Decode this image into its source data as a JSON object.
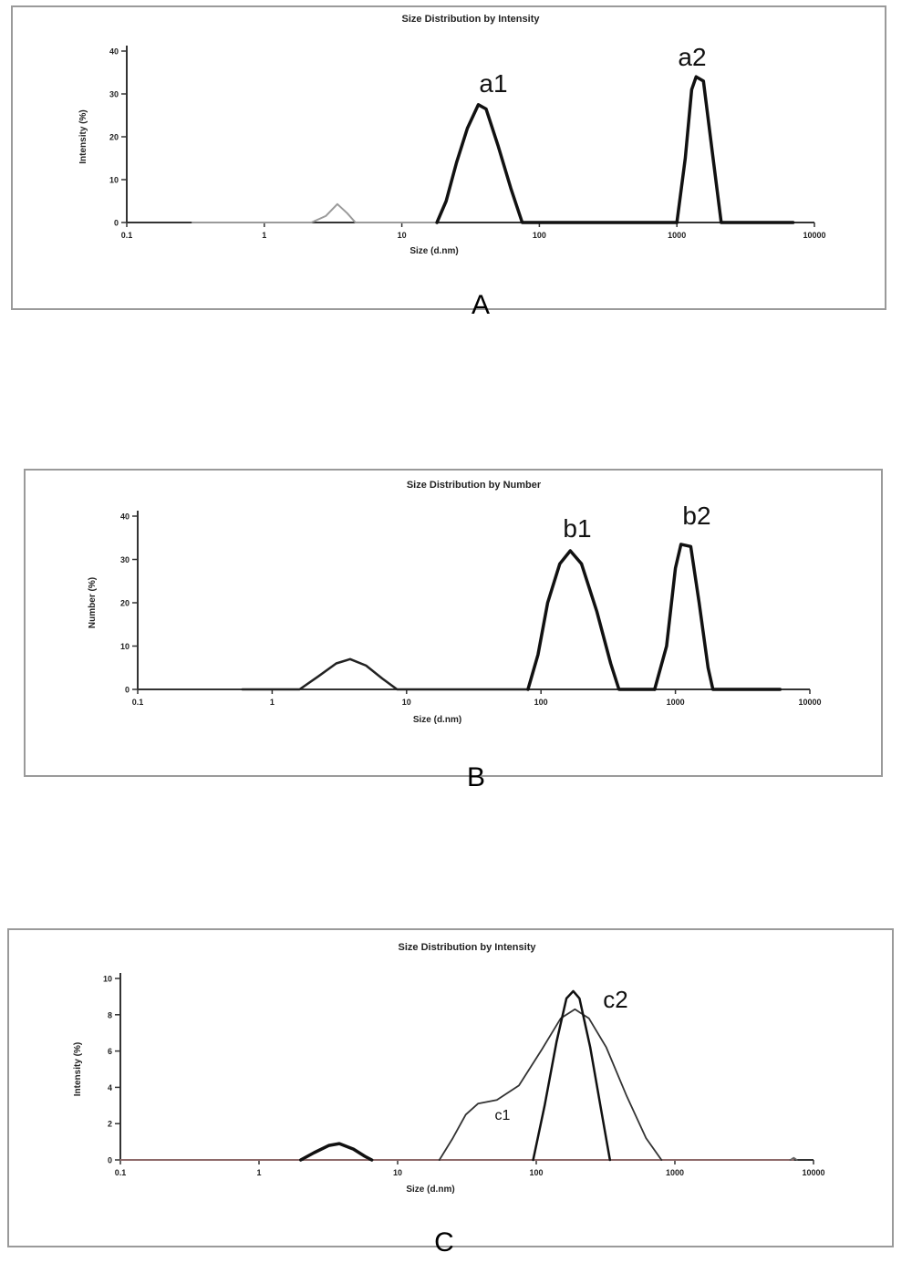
{
  "chart_data": [
    {
      "type": "line",
      "panel_label": "A",
      "title": "Size Distribution by Intensity",
      "xlabel": "Size (d.nm)",
      "ylabel": "Intensity (%)",
      "x_scale": "log",
      "xlim": [
        0.1,
        10000
      ],
      "x_ticks": [
        "0.1",
        "1",
        "10",
        "100",
        "1000",
        "10000"
      ],
      "ylim": [
        0,
        40
      ],
      "y_ticks": [
        "0",
        "10",
        "20",
        "30",
        "40"
      ],
      "grid": false,
      "peak_labels": [
        "a1",
        "a2"
      ],
      "series": [
        {
          "label": "",
          "color": "#9a9a9a",
          "width": 2,
          "points": [
            [
              0.3,
              0
            ],
            [
              2.2,
              0
            ],
            [
              2.8,
              1.5
            ],
            [
              3.4,
              4.3
            ],
            [
              4.0,
              2.2
            ],
            [
              4.6,
              0
            ],
            [
              18,
              0
            ]
          ]
        },
        {
          "label": "a1",
          "color": "#111111",
          "width": 3.5,
          "points": [
            [
              18,
              0
            ],
            [
              21,
              5
            ],
            [
              25,
              14
            ],
            [
              30,
              22
            ],
            [
              36,
              27.5
            ],
            [
              41,
              26.5
            ],
            [
              50,
              18
            ],
            [
              62,
              8
            ],
            [
              75,
              0
            ],
            [
              1000,
              0
            ]
          ]
        },
        {
          "label": "a2",
          "color": "#111111",
          "width": 3.5,
          "points": [
            [
              1000,
              0
            ],
            [
              1150,
              15
            ],
            [
              1280,
              31
            ],
            [
              1380,
              34
            ],
            [
              1560,
              33
            ],
            [
              1800,
              17
            ],
            [
              2100,
              0
            ],
            [
              7000,
              0
            ]
          ]
        }
      ]
    },
    {
      "type": "line",
      "panel_label": "B",
      "title": "Size Distribution by Number",
      "xlabel": "Size (d.nm)",
      "ylabel": "Number (%)",
      "x_scale": "log",
      "xlim": [
        0.1,
        10000
      ],
      "x_ticks": [
        "0.1",
        "1",
        "10",
        "100",
        "1000",
        "10000"
      ],
      "ylim": [
        0,
        40
      ],
      "y_ticks": [
        "0",
        "10",
        "20",
        "30",
        "40"
      ],
      "grid": false,
      "peak_labels": [
        "b1",
        "b2"
      ],
      "series": [
        {
          "label": "",
          "color": "#222222",
          "width": 2.5,
          "points": [
            [
              0.6,
              0
            ],
            [
              1.6,
              0
            ],
            [
              2.2,
              3
            ],
            [
              3.0,
              6
            ],
            [
              3.8,
              7
            ],
            [
              5.0,
              5.5
            ],
            [
              6.6,
              2.5
            ],
            [
              8.5,
              0
            ],
            [
              80,
              0
            ]
          ]
        },
        {
          "label": "b1",
          "color": "#111111",
          "width": 3.5,
          "points": [
            [
              80,
              0
            ],
            [
              95,
              8
            ],
            [
              112,
              20
            ],
            [
              138,
              29
            ],
            [
              165,
              32
            ],
            [
              200,
              29
            ],
            [
              260,
              18
            ],
            [
              330,
              6
            ],
            [
              380,
              0
            ],
            [
              700,
              0
            ]
          ]
        },
        {
          "label": "b2",
          "color": "#111111",
          "width": 3.5,
          "points": [
            [
              700,
              0
            ],
            [
              860,
              10
            ],
            [
              1000,
              28
            ],
            [
              1100,
              33.5
            ],
            [
              1300,
              33
            ],
            [
              1500,
              20
            ],
            [
              1750,
              5
            ],
            [
              1900,
              0
            ],
            [
              6000,
              0
            ]
          ]
        }
      ]
    },
    {
      "type": "line",
      "panel_label": "C",
      "title": "Size Distribution by Intensity",
      "xlabel": "Size (d.nm)",
      "ylabel": "Intensity (%)",
      "x_scale": "log",
      "xlim": [
        0.1,
        10000
      ],
      "x_ticks": [
        "0.1",
        "1",
        "10",
        "100",
        "1000",
        "10000"
      ],
      "ylim": [
        0,
        10
      ],
      "y_ticks": [
        "0",
        "2",
        "4",
        "6",
        "8",
        "10"
      ],
      "grid": false,
      "peak_labels": [
        "c1",
        "c2"
      ],
      "series": [
        {
          "label": "",
          "color": "#c48a8a",
          "width": 1.2,
          "points": [
            [
              0.1,
              0
            ],
            [
              2.0,
              0
            ],
            [
              6,
              0
            ],
            [
              300,
              0
            ],
            [
              7200,
              0
            ]
          ]
        },
        {
          "label": "",
          "color": "#111111",
          "width": 3.5,
          "points": [
            [
              2.0,
              0
            ],
            [
              2.5,
              0.4
            ],
            [
              3.2,
              0.8
            ],
            [
              3.8,
              0.9
            ],
            [
              4.8,
              0.6
            ],
            [
              5.8,
              0.2
            ],
            [
              6.5,
              0
            ]
          ]
        },
        {
          "label": "c1",
          "color": "#333333",
          "width": 1.8,
          "points": [
            [
              20,
              0
            ],
            [
              25,
              1.2
            ],
            [
              31,
              2.5
            ],
            [
              38,
              3.1
            ],
            [
              52,
              3.3
            ],
            [
              75,
              4.1
            ],
            [
              110,
              6.1
            ],
            [
              150,
              7.8
            ],
            [
              190,
              8.3
            ],
            [
              240,
              7.8
            ],
            [
              320,
              6.2
            ],
            [
              450,
              3.5
            ],
            [
              620,
              1.2
            ],
            [
              800,
              0
            ]
          ]
        },
        {
          "label": "c2",
          "color": "#111111",
          "width": 2.5,
          "points": [
            [
              95,
              0
            ],
            [
              115,
              3.0
            ],
            [
              140,
              6.5
            ],
            [
              165,
              8.9
            ],
            [
              185,
              9.3
            ],
            [
              205,
              8.9
            ],
            [
              245,
              6.2
            ],
            [
              290,
              3.0
            ],
            [
              340,
              0
            ]
          ]
        },
        {
          "label": "",
          "color": "#666666",
          "width": 1.6,
          "points": [
            [
              6800,
              0
            ],
            [
              7200,
              0.12
            ],
            [
              7600,
              0
            ]
          ]
        }
      ]
    }
  ]
}
